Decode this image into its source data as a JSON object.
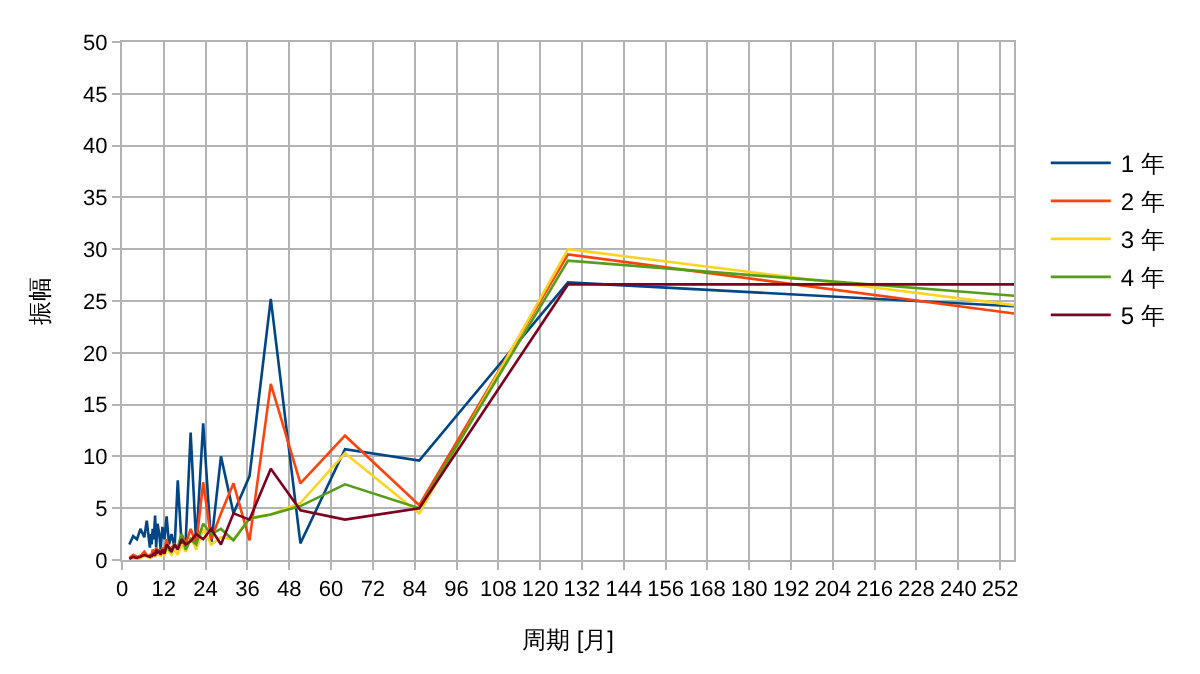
{
  "chart_data": {
    "type": "line",
    "xlabel": "周期 [月]",
    "ylabel": "振幅",
    "x": [
      256,
      128,
      85.3,
      64,
      51.2,
      42.7,
      36.6,
      32,
      28.4,
      25.6,
      23.3,
      21.3,
      19.7,
      18.3,
      17.1,
      16,
      15.1,
      14.2,
      13.5,
      12.8,
      12.2,
      11.6,
      11.1,
      10.7,
      10.2,
      9.8,
      9.5,
      9.1,
      8.8,
      8.5,
      8.3,
      8,
      7.1,
      6.4,
      5.3,
      4.3,
      3.2,
      2.1
    ],
    "series": [
      {
        "name": "1 年",
        "color": "#004586",
        "values": [
          24.5,
          26.8,
          9.6,
          10.7,
          1.6,
          25.2,
          8.1,
          4.5,
          10.0,
          1.5,
          13.2,
          1.5,
          12.3,
          2.0,
          1.5,
          7.7,
          1.2,
          2.5,
          1.5,
          4.2,
          2.0,
          3.2,
          1.0,
          2.5,
          3.5,
          1.2,
          4.3,
          2.0,
          3.0,
          1.5,
          2.5,
          1.2,
          3.8,
          2.2,
          3.0,
          2.0,
          2.3,
          1.5
        ]
      },
      {
        "name": "2 年",
        "color": "#ff420e",
        "values": [
          23.8,
          29.5,
          5.3,
          12.0,
          7.4,
          17.0,
          1.9,
          7.4,
          4.5,
          2.0,
          7.5,
          1.5,
          3.0,
          1.5,
          2.5,
          1.0,
          1.5,
          1.2,
          1.0,
          2.0,
          0.8,
          1.2,
          0.5,
          1.0,
          0.8,
          1.2,
          0.5,
          0.8,
          1.0,
          0.5,
          0.6,
          0.3,
          0.5,
          0.8,
          0.4,
          0.3,
          0.5,
          0.2
        ]
      },
      {
        "name": "3 年",
        "color": "#ffd320",
        "values": [
          24.6,
          30.0,
          4.5,
          10.3,
          5.5,
          4.4,
          4.0,
          2.0,
          2.2,
          1.5,
          3.0,
          1.0,
          2.2,
          0.8,
          1.5,
          0.5,
          1.0,
          0.5,
          0.8,
          1.2,
          0.4,
          0.8,
          0.3,
          0.6,
          0.5,
          0.8,
          0.3,
          0.5,
          0.4,
          0.3,
          0.4,
          0.2,
          0.3,
          0.4,
          0.2,
          0.1,
          0.2,
          0.1
        ]
      },
      {
        "name": "4 年",
        "color": "#579d1c",
        "values": [
          25.5,
          28.9,
          5.0,
          7.3,
          5.2,
          4.4,
          4.0,
          1.9,
          3.0,
          2.5,
          3.5,
          1.5,
          2.0,
          1.0,
          2.5,
          1.2,
          1.5,
          0.8,
          1.0,
          1.5,
          0.6,
          1.0,
          0.5,
          null,
          null,
          null,
          null,
          null,
          null,
          null,
          null,
          null,
          null,
          null,
          null,
          null,
          null,
          null
        ]
      },
      {
        "name": "5 年",
        "color": "#7e0021",
        "values": [
          26.6,
          26.6,
          5.0,
          3.9,
          4.8,
          8.8,
          3.9,
          4.5,
          1.5,
          3.0,
          2.0,
          2.5,
          1.8,
          1.5,
          2.0,
          1.0,
          1.5,
          0.8,
          1.2,
          1.5,
          0.6,
          1.0,
          0.5,
          0.8,
          0.7,
          1.0,
          0.4,
          0.6,
          0.5,
          0.3,
          0.5,
          0.3,
          0.4,
          0.5,
          0.3,
          0.2,
          0.3,
          0.1
        ]
      }
    ],
    "xlim": [
      0,
      256
    ],
    "xticks": [
      0,
      12,
      24,
      36,
      48,
      60,
      72,
      84,
      96,
      108,
      120,
      132,
      144,
      156,
      168,
      180,
      192,
      204,
      216,
      228,
      240,
      252
    ],
    "ylim": [
      0,
      50
    ],
    "yticks": [
      0,
      5,
      10,
      15,
      20,
      25,
      30,
      35,
      40,
      45,
      50
    ],
    "grid": true,
    "legend": "right",
    "marker": "none",
    "line_style": "solid"
  }
}
